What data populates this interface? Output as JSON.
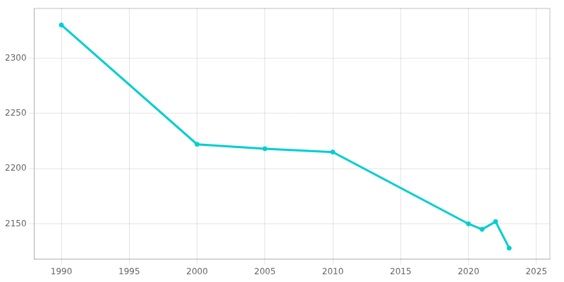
{
  "chart_data": {
    "type": "line",
    "x": [
      1990,
      2000,
      2005,
      2010,
      2020,
      2021,
      2022,
      2023
    ],
    "values": [
      2330,
      2222,
      2218,
      2215,
      2150,
      2145,
      2152,
      2128
    ],
    "color": "#00CED1",
    "marker": "circle",
    "xlim": [
      1988,
      2026
    ],
    "ylim": [
      2118,
      2345
    ],
    "xticks": [
      1990,
      1995,
      2000,
      2005,
      2010,
      2015,
      2020,
      2025
    ],
    "yticks": [
      2150,
      2200,
      2250,
      2300
    ],
    "grid": true
  }
}
